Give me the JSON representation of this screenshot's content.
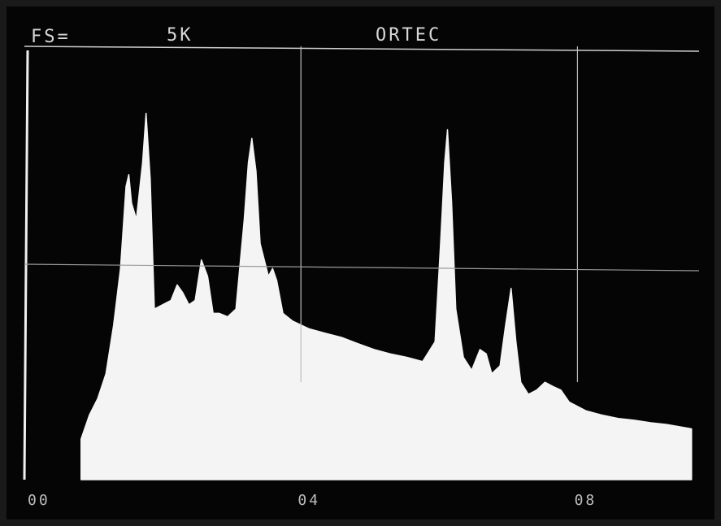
{
  "chart_data": {
    "type": "area",
    "texts": [
      "FS=",
      "5K",
      "ORTEC"
    ],
    "color": "#f4f4f4",
    "x": [
      0.82,
      0.94,
      1.06,
      1.18,
      1.29,
      1.39,
      1.47,
      1.51,
      1.55,
      1.62,
      1.71,
      1.76,
      1.82,
      1.88,
      2.0,
      2.12,
      2.21,
      2.29,
      2.38,
      2.47,
      2.56,
      2.65,
      2.73,
      2.82,
      2.94,
      3.06,
      3.18,
      3.24,
      3.29,
      3.35,
      3.41,
      3.53,
      3.59,
      3.65,
      3.74,
      3.88,
      4.12,
      4.35,
      4.59,
      4.82,
      5.06,
      5.29,
      5.53,
      5.76,
      5.94,
      6.02,
      6.08,
      6.12,
      6.18,
      6.24,
      6.35,
      6.47,
      6.59,
      6.68,
      6.76,
      6.88,
      6.96,
      7.04,
      7.11,
      7.18,
      7.29,
      7.41,
      7.53,
      7.65,
      7.76,
      7.88,
      8.12,
      8.35,
      8.59,
      8.82,
      9.06,
      9.29,
      9.65
    ],
    "values": [
      470,
      750,
      940,
      1230,
      1790,
      2450,
      3400,
      3540,
      3210,
      3020,
      3680,
      4250,
      3490,
      1980,
      2030,
      2080,
      2260,
      2170,
      2030,
      2080,
      2550,
      2360,
      1930,
      1930,
      1890,
      1980,
      3020,
      3680,
      3960,
      3580,
      2740,
      2360,
      2450,
      2310,
      1930,
      1840,
      1750,
      1700,
      1650,
      1580,
      1510,
      1460,
      1420,
      1370,
      1600,
      2740,
      3680,
      4060,
      3210,
      1980,
      1420,
      1270,
      1510,
      1460,
      1230,
      1320,
      1790,
      2220,
      1600,
      1130,
      990,
      1040,
      1130,
      1080,
      1040,
      900,
      800,
      750,
      710,
      690,
      660,
      640,
      590
    ],
    "xlim": [
      0,
      9.7
    ],
    "ylim": [
      0,
      5000
    ],
    "xticks": [
      {
        "value": 0,
        "label": "00"
      },
      {
        "value": 4,
        "label": "04"
      },
      {
        "value": 8,
        "label": "08"
      }
    ],
    "ygrid": [
      2500
    ],
    "grid": true
  }
}
